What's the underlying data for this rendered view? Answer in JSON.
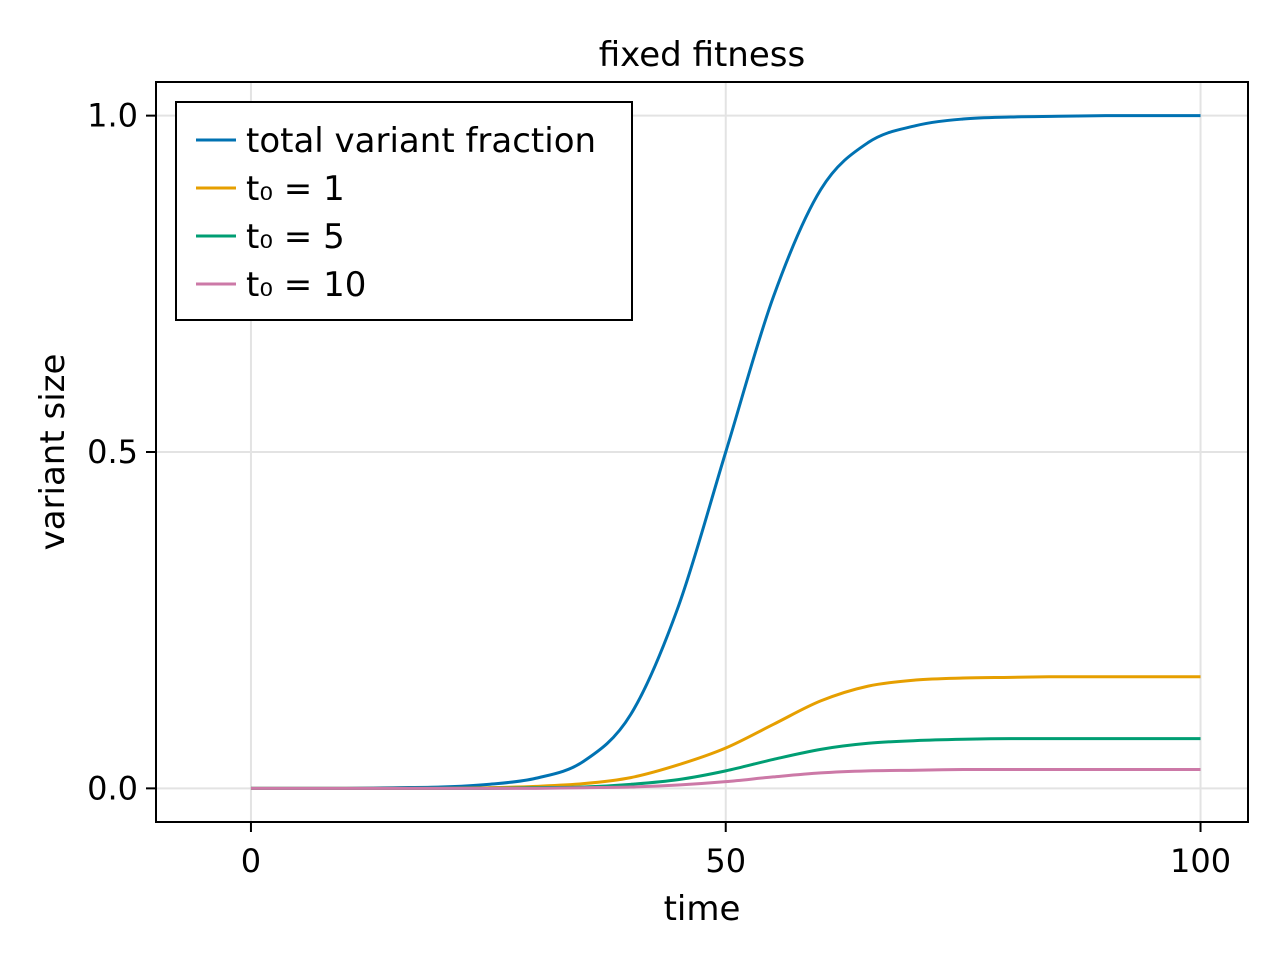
{
  "chart_data": {
    "type": "line",
    "title": "fixed fitness",
    "xlabel": "time",
    "ylabel": "variant size",
    "xlim": [
      -10,
      105
    ],
    "ylim": [
      -0.05,
      1.05
    ],
    "xticks": [
      0,
      50,
      100
    ],
    "xtick_labels": [
      "0",
      "50",
      "100"
    ],
    "yticks": [
      0.0,
      0.5,
      1.0
    ],
    "ytick_labels": [
      "0.0",
      "0.5",
      "1.0"
    ],
    "grid": true,
    "legend_position": "top-left",
    "x": [
      0,
      5,
      10,
      15,
      20,
      25,
      30,
      35,
      40,
      45,
      50,
      55,
      60,
      65,
      70,
      75,
      80,
      85,
      90,
      95,
      100
    ],
    "series": [
      {
        "name": "total variant fraction",
        "color": "#0072b2",
        "values": [
          0.0,
          0.0,
          0.0,
          0.001,
          0.002,
          0.006,
          0.015,
          0.04,
          0.11,
          0.27,
          0.5,
          0.73,
          0.89,
          0.96,
          0.985,
          0.995,
          0.998,
          0.999,
          1.0,
          1.0,
          1.0
        ]
      },
      {
        "name": "t₀ = 1",
        "color": "#e69f00",
        "values": [
          0.0,
          0.0,
          0.0,
          0.0,
          0.0,
          0.001,
          0.003,
          0.007,
          0.016,
          0.035,
          0.06,
          0.095,
          0.13,
          0.152,
          0.161,
          0.164,
          0.165,
          0.166,
          0.166,
          0.166,
          0.166
        ]
      },
      {
        "name": "t₀ = 5",
        "color": "#009e73",
        "values": [
          0.0,
          0.0,
          0.0,
          0.0,
          0.0,
          0.0,
          0.001,
          0.002,
          0.006,
          0.013,
          0.026,
          0.043,
          0.058,
          0.067,
          0.071,
          0.073,
          0.074,
          0.074,
          0.074,
          0.074,
          0.074
        ]
      },
      {
        "name": "t₀ = 10",
        "color": "#cc79a7",
        "values": [
          0.0,
          0.0,
          0.0,
          0.0,
          0.0,
          0.0,
          0.0,
          0.001,
          0.002,
          0.005,
          0.01,
          0.017,
          0.023,
          0.026,
          0.027,
          0.028,
          0.028,
          0.028,
          0.028,
          0.028,
          0.028
        ]
      }
    ]
  }
}
